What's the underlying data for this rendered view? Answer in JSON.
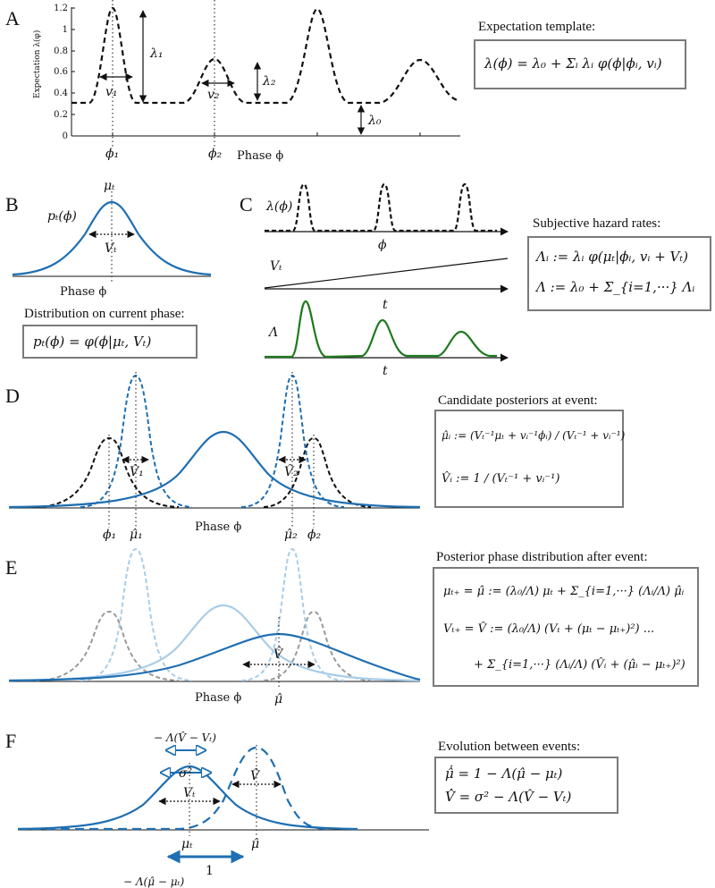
{
  "panels": {
    "a": {
      "letter": "A",
      "ylabel": "Expectation λ(φ)",
      "yticks": [
        "1.2",
        "1",
        "0.8",
        "0.6",
        "0.4",
        "0.2",
        "0"
      ],
      "labels": {
        "phi1": "ϕ₁",
        "phi2": "ϕ₂",
        "xlabel": "Phase ϕ",
        "lambda1": "λ₁",
        "lambda2": "λ₂",
        "lambda0": "λ₀",
        "v1": "v₁",
        "v2": "v₂"
      },
      "box_title": "Expectation template:",
      "box_eq": "λ(ϕ) = λ₀ + Σᵢ λᵢ φ(ϕ|ϕᵢ, vᵢ)"
    },
    "b": {
      "letter": "B",
      "labels": {
        "mu": "μₜ",
        "p": "pₜ(ϕ)",
        "v": "Vₜ",
        "xlabel": "Phase ϕ"
      },
      "box_title": "Distribution on current phase:",
      "box_eq": "pₜ(ϕ) = φ(ϕ|μₜ, Vₜ)"
    },
    "c": {
      "letter": "C",
      "labels": {
        "lambda": "λ(ϕ)",
        "phi": "ϕ",
        "vt": "Vₜ",
        "t1": "t",
        "cap_lambda": "Λ",
        "t2": "t"
      },
      "box_title": "Subjective hazard rates:",
      "box_eq1": "Λᵢ := λᵢ φ(μₜ|ϕᵢ, vᵢ + Vₜ)",
      "box_eq2": "Λ := λ₀ + Σ_{i=1,···} Λᵢ"
    },
    "d": {
      "letter": "D",
      "labels": {
        "phi1": "ϕ₁",
        "mu1": "μ̂₁",
        "xlabel": "Phase ϕ",
        "mu2": "μ̂₂",
        "phi2": "ϕ₂",
        "v1": "V̂₁",
        "v2": "V̂₂"
      },
      "box_title": "Candidate posteriors at event:",
      "box_eq1": "μ̂ᵢ := (Vₜ⁻¹μₜ + vᵢ⁻¹ϕᵢ) / (Vₜ⁻¹ + vᵢ⁻¹)",
      "box_eq2": "V̂ᵢ := 1 / (Vₜ⁻¹ + vᵢ⁻¹)"
    },
    "e": {
      "letter": "E",
      "labels": {
        "xlabel": "Phase ϕ",
        "mu": "μ̂",
        "v": "V̂"
      },
      "box_title": "Posterior phase distribution after event:",
      "box_eq1": "μₜ₊ = μ̂ := (λ₀/Λ) μₜ + Σ_{i=1,···} (Λᵢ/Λ) μ̂ᵢ",
      "box_eq2": "Vₜ₊ = V̂ := (λ₀/Λ) (Vₜ + (μₜ − μₜ₊)²) ...",
      "box_eq3": "+ Σ_{i=1,···} (Λᵢ/Λ) (V̂ᵢ + (μ̂ᵢ − μₜ₊)²)"
    },
    "f": {
      "letter": "F",
      "labels": {
        "top": "− Λ(V̂ − Vₜ)",
        "sigma": "σ²",
        "vt": "Vₜ",
        "vhat": "V̂",
        "mut": "μₜ",
        "muhat": "μ̂",
        "one": "1",
        "bottom": "− Λ(μ̂ − μₜ)"
      },
      "box_title": "Evolution between events:",
      "box_eq1": "μ̂̇ =   1 − Λ(μ̂ − μₜ)",
      "box_eq2": "V̂̇ =   σ² − Λ(V̂ − Vₜ)"
    }
  },
  "colors": {
    "blue": "#1f6fb2",
    "light_blue": "#a9cde8",
    "green": "#1e7a1e",
    "black": "#111111",
    "gray": "#9a9a9a",
    "box_border": "#7a7a7a"
  }
}
